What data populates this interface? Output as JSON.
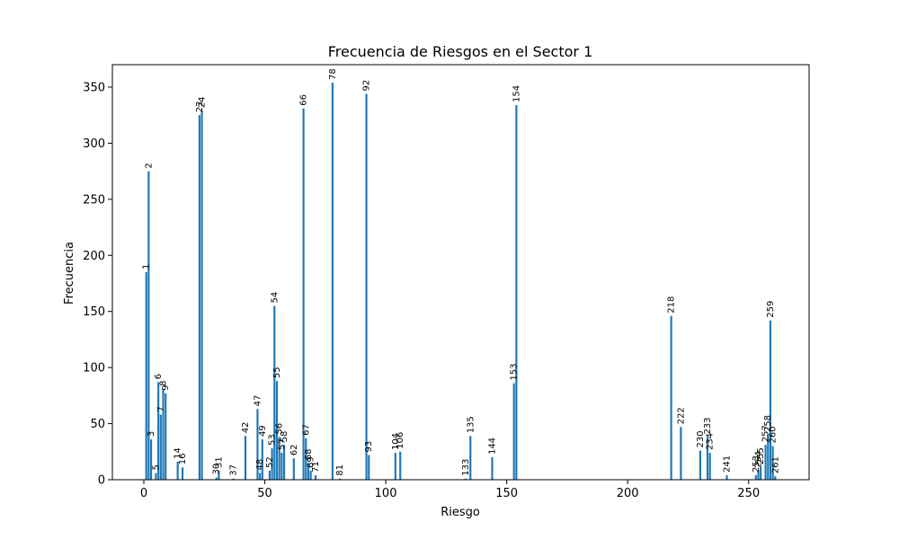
{
  "chart_data": {
    "type": "bar",
    "title": "Frecuencia de Riesgos en el Sector 1",
    "xlabel": "Riesgo",
    "ylabel": "Frecuencia",
    "xlim": [
      -13,
      275
    ],
    "ylim": [
      0,
      370
    ],
    "xticks": [
      0,
      50,
      100,
      150,
      200,
      250
    ],
    "yticks": [
      0,
      50,
      100,
      150,
      200,
      250,
      300,
      350
    ],
    "bar_color": "#1f77b4",
    "grid": false,
    "legend": "none",
    "x": [
      1,
      2,
      3,
      5,
      6,
      7,
      8,
      9,
      14,
      16,
      23,
      24,
      30,
      31,
      37,
      42,
      47,
      48,
      49,
      52,
      53,
      54,
      55,
      56,
      57,
      58,
      62,
      66,
      67,
      68,
      69,
      71,
      78,
      81,
      92,
      93,
      104,
      106,
      133,
      135,
      144,
      153,
      154,
      218,
      222,
      230,
      233,
      234,
      241,
      253,
      254,
      255,
      257,
      258,
      259,
      260,
      261
    ],
    "values": [
      185,
      275,
      36,
      6,
      87,
      58,
      81,
      77,
      16,
      11,
      325,
      329,
      2,
      8,
      1,
      39,
      63,
      6,
      36,
      8,
      28,
      155,
      88,
      38,
      24,
      31,
      19,
      331,
      37,
      15,
      8,
      4,
      354,
      1,
      344,
      22,
      24,
      25,
      1,
      39,
      20,
      86,
      334,
      146,
      47,
      26,
      38,
      24,
      4,
      4,
      8,
      11,
      31,
      40,
      142,
      30,
      3
    ],
    "labels": [
      "1",
      "2",
      "3",
      "5",
      "6",
      "7",
      "8",
      "9",
      "14",
      "16",
      "23",
      "24",
      "30",
      "31",
      "37",
      "42",
      "47",
      "48",
      "49",
      "52",
      "53",
      "54",
      "55",
      "56",
      "57",
      "58",
      "62",
      "66",
      "67",
      "68",
      "69",
      "71",
      "78",
      "81",
      "92",
      "93",
      "104",
      "106",
      "133",
      "135",
      "144",
      "153",
      "154",
      "218",
      "222",
      "230",
      "233",
      "234",
      "241",
      "253",
      "254",
      "255",
      "257",
      "258",
      "259",
      "260",
      "261"
    ]
  }
}
